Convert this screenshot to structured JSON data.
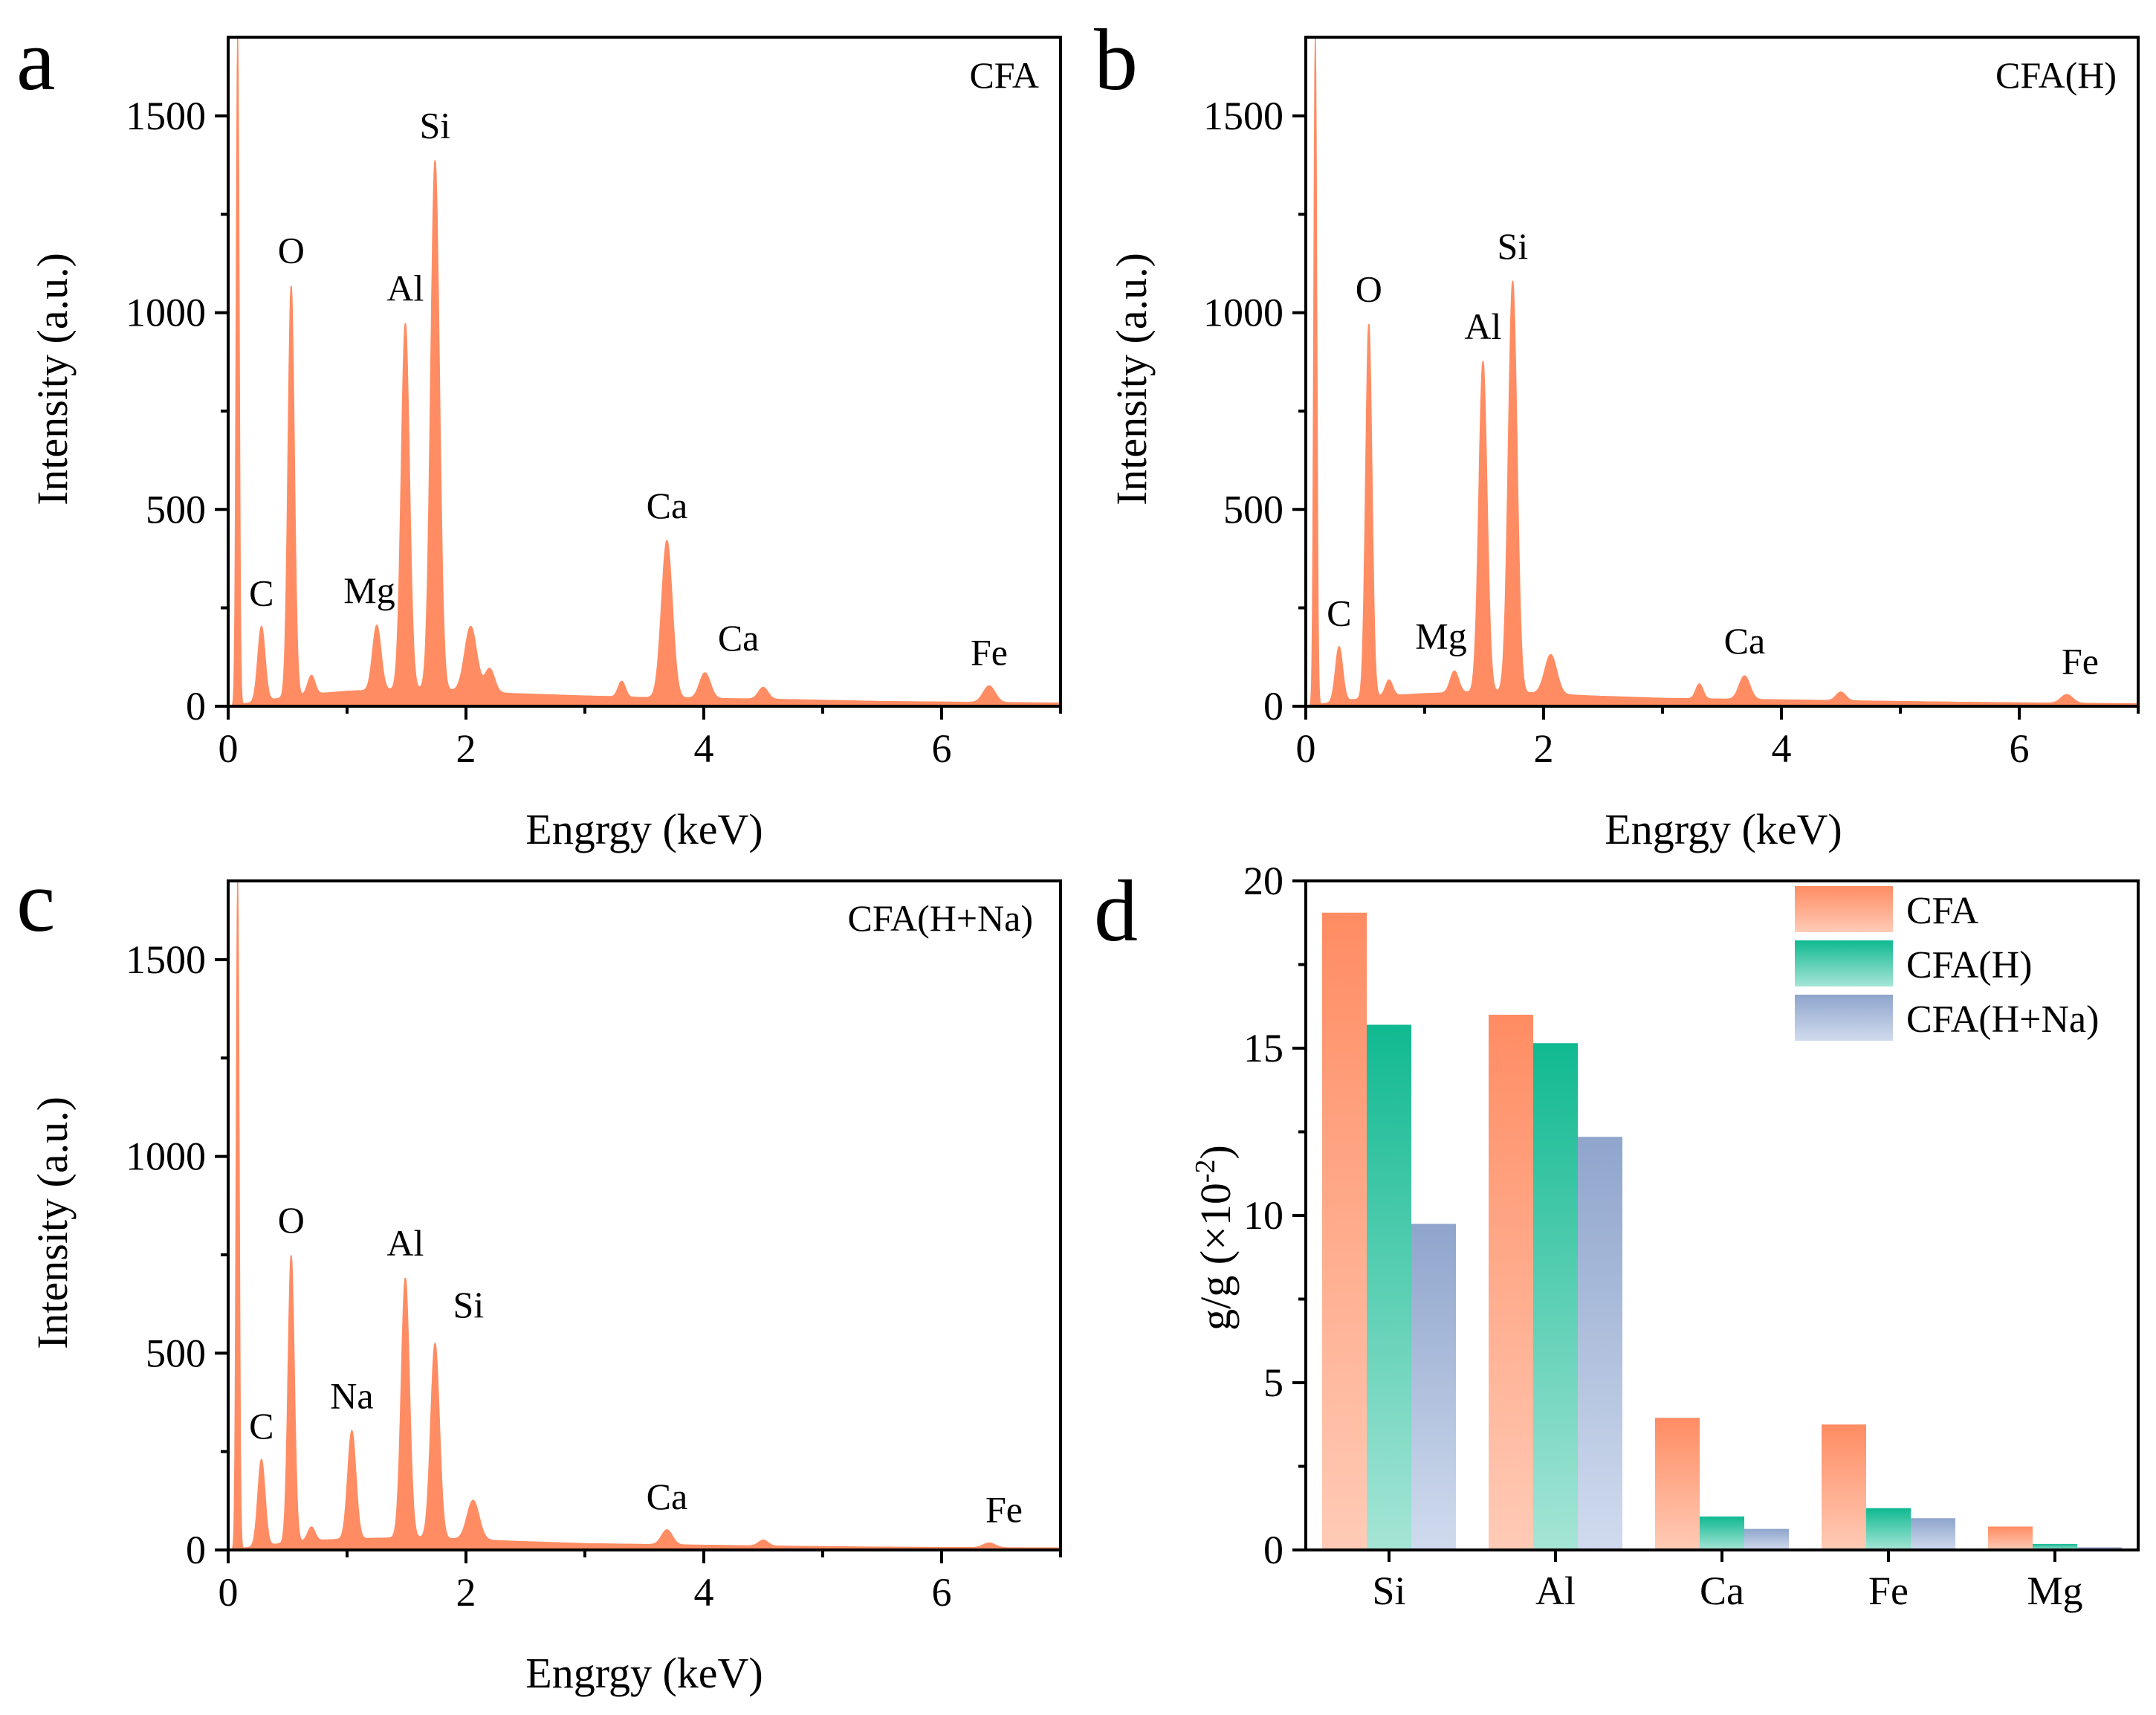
{
  "figure": {
    "colors": {
      "cfa": "#FF8C63",
      "cfa_light": "#FFCBB6",
      "cfa_h": "#10B991",
      "cfa_h_light": "#A6E5D6",
      "cfa_hna": "#8FA5CC",
      "cfa_hna_light": "#D0DBEE"
    }
  },
  "chart_data": [
    {
      "panel": "a",
      "type": "area",
      "sample": "CFA",
      "xlabel": "Engrgy (keV)",
      "ylabel": "Intensity (a.u.)",
      "xlim": [
        0,
        7
      ],
      "ylim": [
        0,
        1700
      ],
      "xticks": [
        0,
        2,
        4,
        6
      ],
      "yticks": [
        0,
        500,
        1000,
        1500
      ],
      "baseline": [
        [
          0.6,
          28
        ],
        [
          1.0,
          38
        ],
        [
          1.6,
          45
        ],
        [
          2.4,
          32
        ],
        [
          3.0,
          26
        ],
        [
          3.5,
          22
        ],
        [
          4.5,
          18
        ],
        [
          5.5,
          12
        ],
        [
          6.2,
          10
        ],
        [
          7.0,
          8
        ]
      ],
      "peaks": [
        {
          "label": "C",
          "x": 0.28,
          "y": 190,
          "w": 0.03
        },
        {
          "label": "O",
          "x": 0.53,
          "y": 1045,
          "w": 0.026
        },
        {
          "label": "",
          "x": 0.7,
          "y": 48,
          "w": 0.03
        },
        {
          "label": "Mg",
          "x": 1.25,
          "y": 165,
          "w": 0.035
        },
        {
          "label": "Al",
          "x": 1.49,
          "y": 930,
          "w": 0.034
        },
        {
          "label": "Si",
          "x": 1.74,
          "y": 1345,
          "w": 0.036
        },
        {
          "label": "",
          "x": 2.04,
          "y": 165,
          "w": 0.05
        },
        {
          "label": "",
          "x": 2.2,
          "y": 60,
          "w": 0.04
        },
        {
          "label": "",
          "x": 3.31,
          "y": 40,
          "w": 0.03
        },
        {
          "label": "Ca",
          "x": 3.69,
          "y": 400,
          "w": 0.045
        },
        {
          "label": "Ca",
          "x": 4.01,
          "y": 65,
          "w": 0.045
        },
        {
          "label": "",
          "x": 4.5,
          "y": 30,
          "w": 0.04
        },
        {
          "label": "Fe",
          "x": 6.4,
          "y": 42,
          "w": 0.05
        }
      ],
      "zero_peak": 1700
    },
    {
      "panel": "b",
      "type": "area",
      "sample": "CFA(H)",
      "xlabel": "Engrgy (keV)",
      "ylabel": "Intensity (a.u.)",
      "xlim": [
        0,
        7
      ],
      "ylim": [
        0,
        1700
      ],
      "xticks": [
        0,
        2,
        4,
        6
      ],
      "yticks": [
        0,
        500,
        1000,
        1500
      ],
      "baseline": [
        [
          0.6,
          25
        ],
        [
          1.0,
          32
        ],
        [
          1.6,
          38
        ],
        [
          2.4,
          26
        ],
        [
          3.0,
          20
        ],
        [
          3.5,
          18
        ],
        [
          4.5,
          14
        ],
        [
          5.5,
          10
        ],
        [
          6.2,
          8
        ],
        [
          7.0,
          6
        ]
      ],
      "peaks": [
        {
          "label": "C",
          "x": 0.28,
          "y": 140,
          "w": 0.03
        },
        {
          "label": "O",
          "x": 0.53,
          "y": 950,
          "w": 0.026
        },
        {
          "label": "",
          "x": 0.7,
          "y": 40,
          "w": 0.03
        },
        {
          "label": "Mg",
          "x": 1.25,
          "y": 55,
          "w": 0.035
        },
        {
          "label": "Al",
          "x": 1.49,
          "y": 840,
          "w": 0.034
        },
        {
          "label": "Si",
          "x": 1.74,
          "y": 1045,
          "w": 0.036
        },
        {
          "label": "",
          "x": 2.06,
          "y": 100,
          "w": 0.05
        },
        {
          "label": "",
          "x": 3.31,
          "y": 38,
          "w": 0.03
        },
        {
          "label": "Ca",
          "x": 3.69,
          "y": 60,
          "w": 0.045
        },
        {
          "label": "",
          "x": 4.5,
          "y": 22,
          "w": 0.04
        },
        {
          "label": "Fe",
          "x": 6.4,
          "y": 22,
          "w": 0.05
        }
      ],
      "zero_peak": 1700
    },
    {
      "panel": "c",
      "type": "area",
      "sample": "CFA(H+Na)",
      "xlabel": "Engrgy (keV)",
      "ylabel": "Intensity (a.u.)",
      "xlim": [
        0,
        7
      ],
      "ylim": [
        0,
        1700
      ],
      "xticks": [
        0,
        2,
        4,
        6
      ],
      "yticks": [
        0,
        500,
        1000,
        1500
      ],
      "baseline": [
        [
          0.6,
          22
        ],
        [
          1.0,
          28
        ],
        [
          1.6,
          32
        ],
        [
          2.4,
          22
        ],
        [
          3.0,
          16
        ],
        [
          3.5,
          14
        ],
        [
          4.5,
          10
        ],
        [
          5.5,
          7
        ],
        [
          6.2,
          6
        ],
        [
          7.0,
          5
        ]
      ],
      "peaks": [
        {
          "label": "C",
          "x": 0.28,
          "y": 220,
          "w": 0.03
        },
        {
          "label": "O",
          "x": 0.53,
          "y": 730,
          "w": 0.026
        },
        {
          "label": "",
          "x": 0.7,
          "y": 35,
          "w": 0.03
        },
        {
          "label": "Na",
          "x": 1.04,
          "y": 275,
          "w": 0.034
        },
        {
          "label": "Al",
          "x": 1.49,
          "y": 660,
          "w": 0.034
        },
        {
          "label": "Si",
          "x": 1.74,
          "y": 495,
          "w": 0.036
        },
        {
          "label": "",
          "x": 2.06,
          "y": 100,
          "w": 0.05
        },
        {
          "label": "Ca",
          "x": 3.69,
          "y": 38,
          "w": 0.045
        },
        {
          "label": "",
          "x": 4.5,
          "y": 15,
          "w": 0.04
        },
        {
          "label": "Fe",
          "x": 6.4,
          "y": 12,
          "w": 0.05
        }
      ],
      "zero_peak": 1700
    },
    {
      "panel": "d",
      "type": "bar",
      "categories": [
        "Si",
        "Al",
        "Ca",
        "Fe",
        "Mg"
      ],
      "ylabel": "g/g (×10",
      "ylabel_sup": "-2",
      "ylabel_end": ")",
      "ylim": [
        0,
        20
      ],
      "yticks": [
        0,
        5,
        10,
        15,
        20
      ],
      "series": [
        {
          "name": "CFA",
          "values": [
            19.05,
            16.0,
            3.95,
            3.75,
            0.7
          ]
        },
        {
          "name": "CFA(H)",
          "values": [
            15.7,
            15.15,
            1.0,
            1.25,
            0.18
          ]
        },
        {
          "name": "CFA(H+Na)",
          "values": [
            9.75,
            12.35,
            0.63,
            0.95,
            0.08
          ]
        }
      ]
    }
  ]
}
